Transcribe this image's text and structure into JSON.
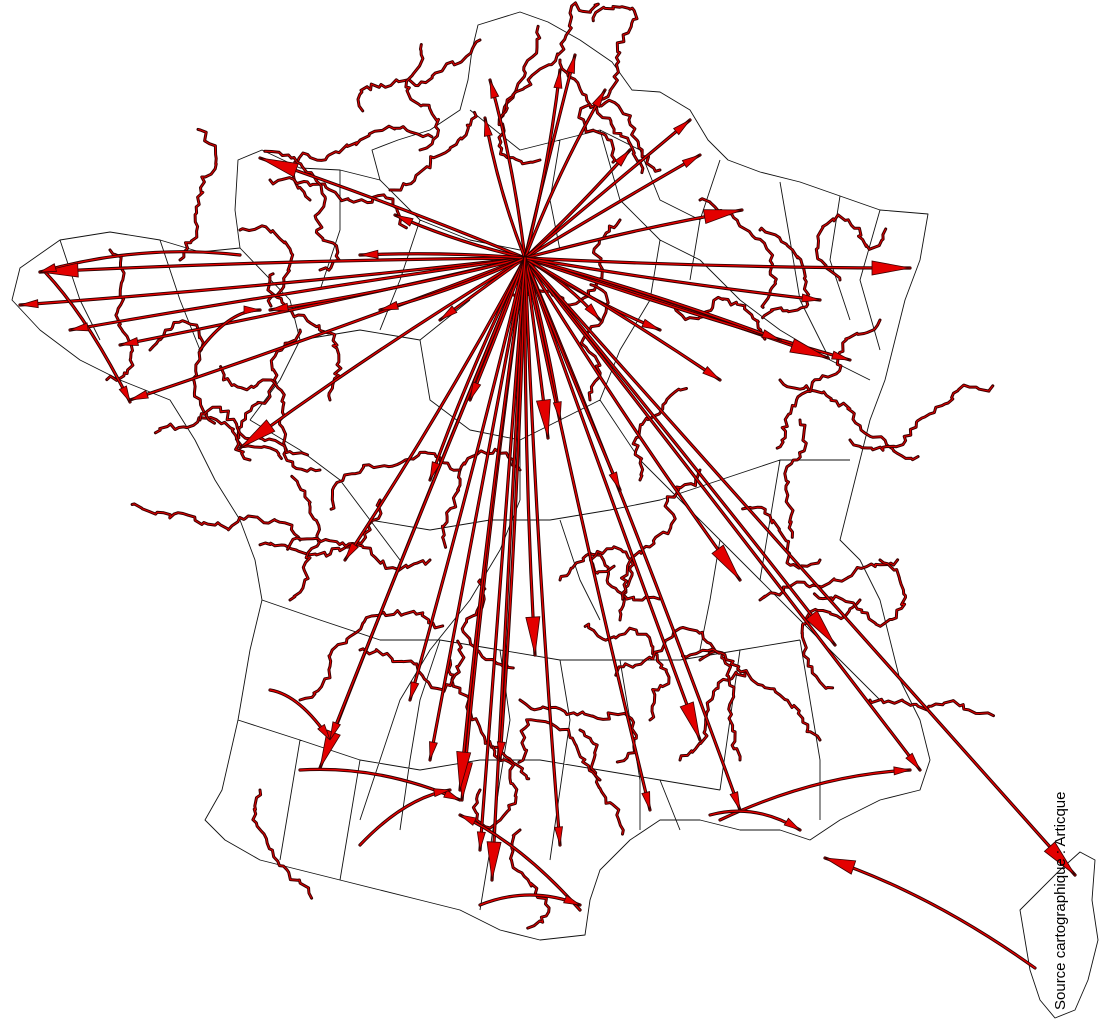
{
  "map": {
    "source_caption": "Source cartographique : Articque",
    "colors": {
      "flow_fill": "#e30000",
      "flow_outline": "#3a0000",
      "boundary": "#111111",
      "background": "#ffffff"
    },
    "icons": [
      "flow-arrowhead-icon"
    ]
  }
}
